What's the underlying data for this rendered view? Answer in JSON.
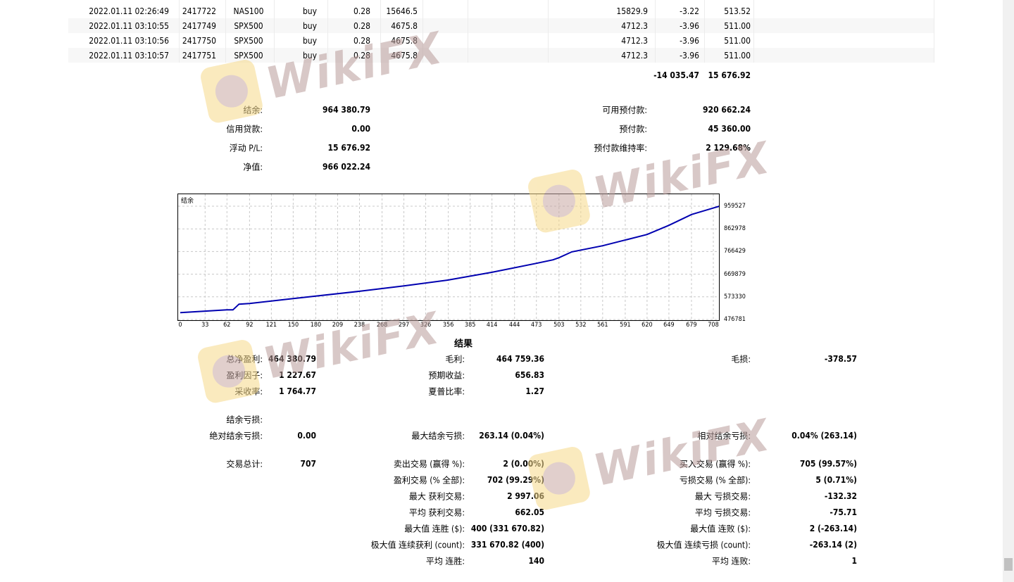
{
  "trades": [
    {
      "time": "2022.01.11 02:26:49",
      "ticket": "2417722",
      "symbol": "NAS100",
      "type": "buy",
      "size": "0.28",
      "price": "15646.5",
      "close_price": "15829.9",
      "swap": "-3.22",
      "profit": "513.52"
    },
    {
      "time": "2022.01.11 03:10:55",
      "ticket": "2417749",
      "symbol": "SPX500",
      "type": "buy",
      "size": "0.28",
      "price": "4675.8",
      "close_price": "4712.3",
      "swap": "-3.96",
      "profit": "511.00"
    },
    {
      "time": "2022.01.11 03:10:56",
      "ticket": "2417750",
      "symbol": "SPX500",
      "type": "buy",
      "size": "0.28",
      "price": "4675.8",
      "close_price": "4712.3",
      "swap": "-3.96",
      "profit": "511.00"
    },
    {
      "time": "2022.01.11 03:10:57",
      "ticket": "2417751",
      "symbol": "SPX500",
      "type": "buy",
      "size": "0.28",
      "price": "4675.8",
      "close_price": "4712.3",
      "swap": "-3.96",
      "profit": "511.00"
    }
  ],
  "totals": {
    "swap": "-14 035.47",
    "profit": "15 676.92"
  },
  "account": {
    "balance_label": "结余:",
    "balance": "964 380.79",
    "credit_label": "信用贷款:",
    "credit": "0.00",
    "floating_label": "浮动 P/L:",
    "floating": "15 676.92",
    "equity_label": "净值:",
    "equity": "966 022.24",
    "free_margin_label": "可用预付款:",
    "free_margin": "920 662.24",
    "margin_label": "预付款:",
    "margin": "45 360.00",
    "margin_level_label": "预付款维持率:",
    "margin_level": "2 129.68%"
  },
  "chart_data": {
    "type": "line",
    "title": "结余",
    "x": [
      0,
      62,
      70,
      78,
      92,
      150,
      238,
      297,
      356,
      414,
      473,
      495,
      503,
      520,
      561,
      620,
      649,
      679,
      716
    ],
    "y": [
      506000,
      518000,
      518000,
      542000,
      545000,
      566000,
      597000,
      620000,
      645000,
      678000,
      716000,
      731000,
      740000,
      765000,
      791000,
      839000,
      878000,
      924000,
      959527
    ],
    "xticks": [
      "0",
      "33",
      "62",
      "92",
      "121",
      "150",
      "180",
      "209",
      "238",
      "268",
      "297",
      "326",
      "356",
      "385",
      "414",
      "444",
      "473",
      "503",
      "532",
      "561",
      "591",
      "620",
      "649",
      "679",
      "708"
    ],
    "yticks": [
      "959527",
      "862978",
      "766429",
      "669879",
      "573330",
      "476781"
    ],
    "xlim": [
      0,
      716
    ],
    "ylim": [
      476781,
      959527
    ],
    "grid": true,
    "line_color": "#0000b0"
  },
  "results": {
    "title": "结果",
    "net_profit_label": "总净盈利:",
    "net_profit": "464 380.79",
    "gross_profit_label": "毛利:",
    "gross_profit": "464 759.36",
    "gross_loss_label": "毛损:",
    "gross_loss": "-378.57",
    "profit_factor_label": "盈利因子:",
    "profit_factor": "1 227.67",
    "expected_payoff_label": "预期收益:",
    "expected_payoff": "656.83",
    "recovery_label": "采收率:",
    "recovery": "1 764.77",
    "sharpe_label": "夏普比率:",
    "sharpe": "1.27",
    "balance_drawdown_label": "结余亏损:",
    "abs_drawdown_label": "绝对结余亏损:",
    "abs_drawdown": "0.00",
    "max_drawdown_label": "最大结余亏损:",
    "max_drawdown": "263.14 (0.04%)",
    "rel_drawdown_label": "相对结余亏损:",
    "rel_drawdown": "0.04% (263.14)",
    "total_trades_label": "交易总计:",
    "total_trades": "707",
    "short_label": "卖出交易 (赢得 %):",
    "short": "2 (0.00%)",
    "long_label": "买入交易 (赢得 %):",
    "long": "705 (99.57%)",
    "profit_trades_label": "盈利交易 (% 全部):",
    "profit_trades": "702 (99.29%)",
    "loss_trades_label": "亏损交易 (% 全部):",
    "loss_trades": "5 (0.71%)",
    "largest_profit_label": "最大 获利交易:",
    "largest_profit": "2 997.06",
    "largest_loss_label": "最大 亏损交易:",
    "largest_loss": "-132.32",
    "avg_profit_label": "平均 获利交易:",
    "avg_profit": "662.05",
    "avg_loss_label": "平均 亏损交易:",
    "avg_loss": "-75.71",
    "max_cons_wins_label": "最大值 连胜 ($):",
    "max_cons_wins": "400 (331 670.82)",
    "max_cons_losses_label": "最大值 连败 ($):",
    "max_cons_losses": "2 (-263.14)",
    "max_cons_profit_label": "极大值 连续获利 (count):",
    "max_cons_profit": "331 670.82 (400)",
    "max_cons_loss_label": "极大值 连续亏损 (count):",
    "max_cons_loss": "-263.14 (2)",
    "avg_cons_wins_label": "平均 连胜:",
    "avg_cons_wins": "140",
    "avg_cons_losses_label": "平均 连败:",
    "avg_cons_losses": "1"
  },
  "watermark": "WikiFX"
}
